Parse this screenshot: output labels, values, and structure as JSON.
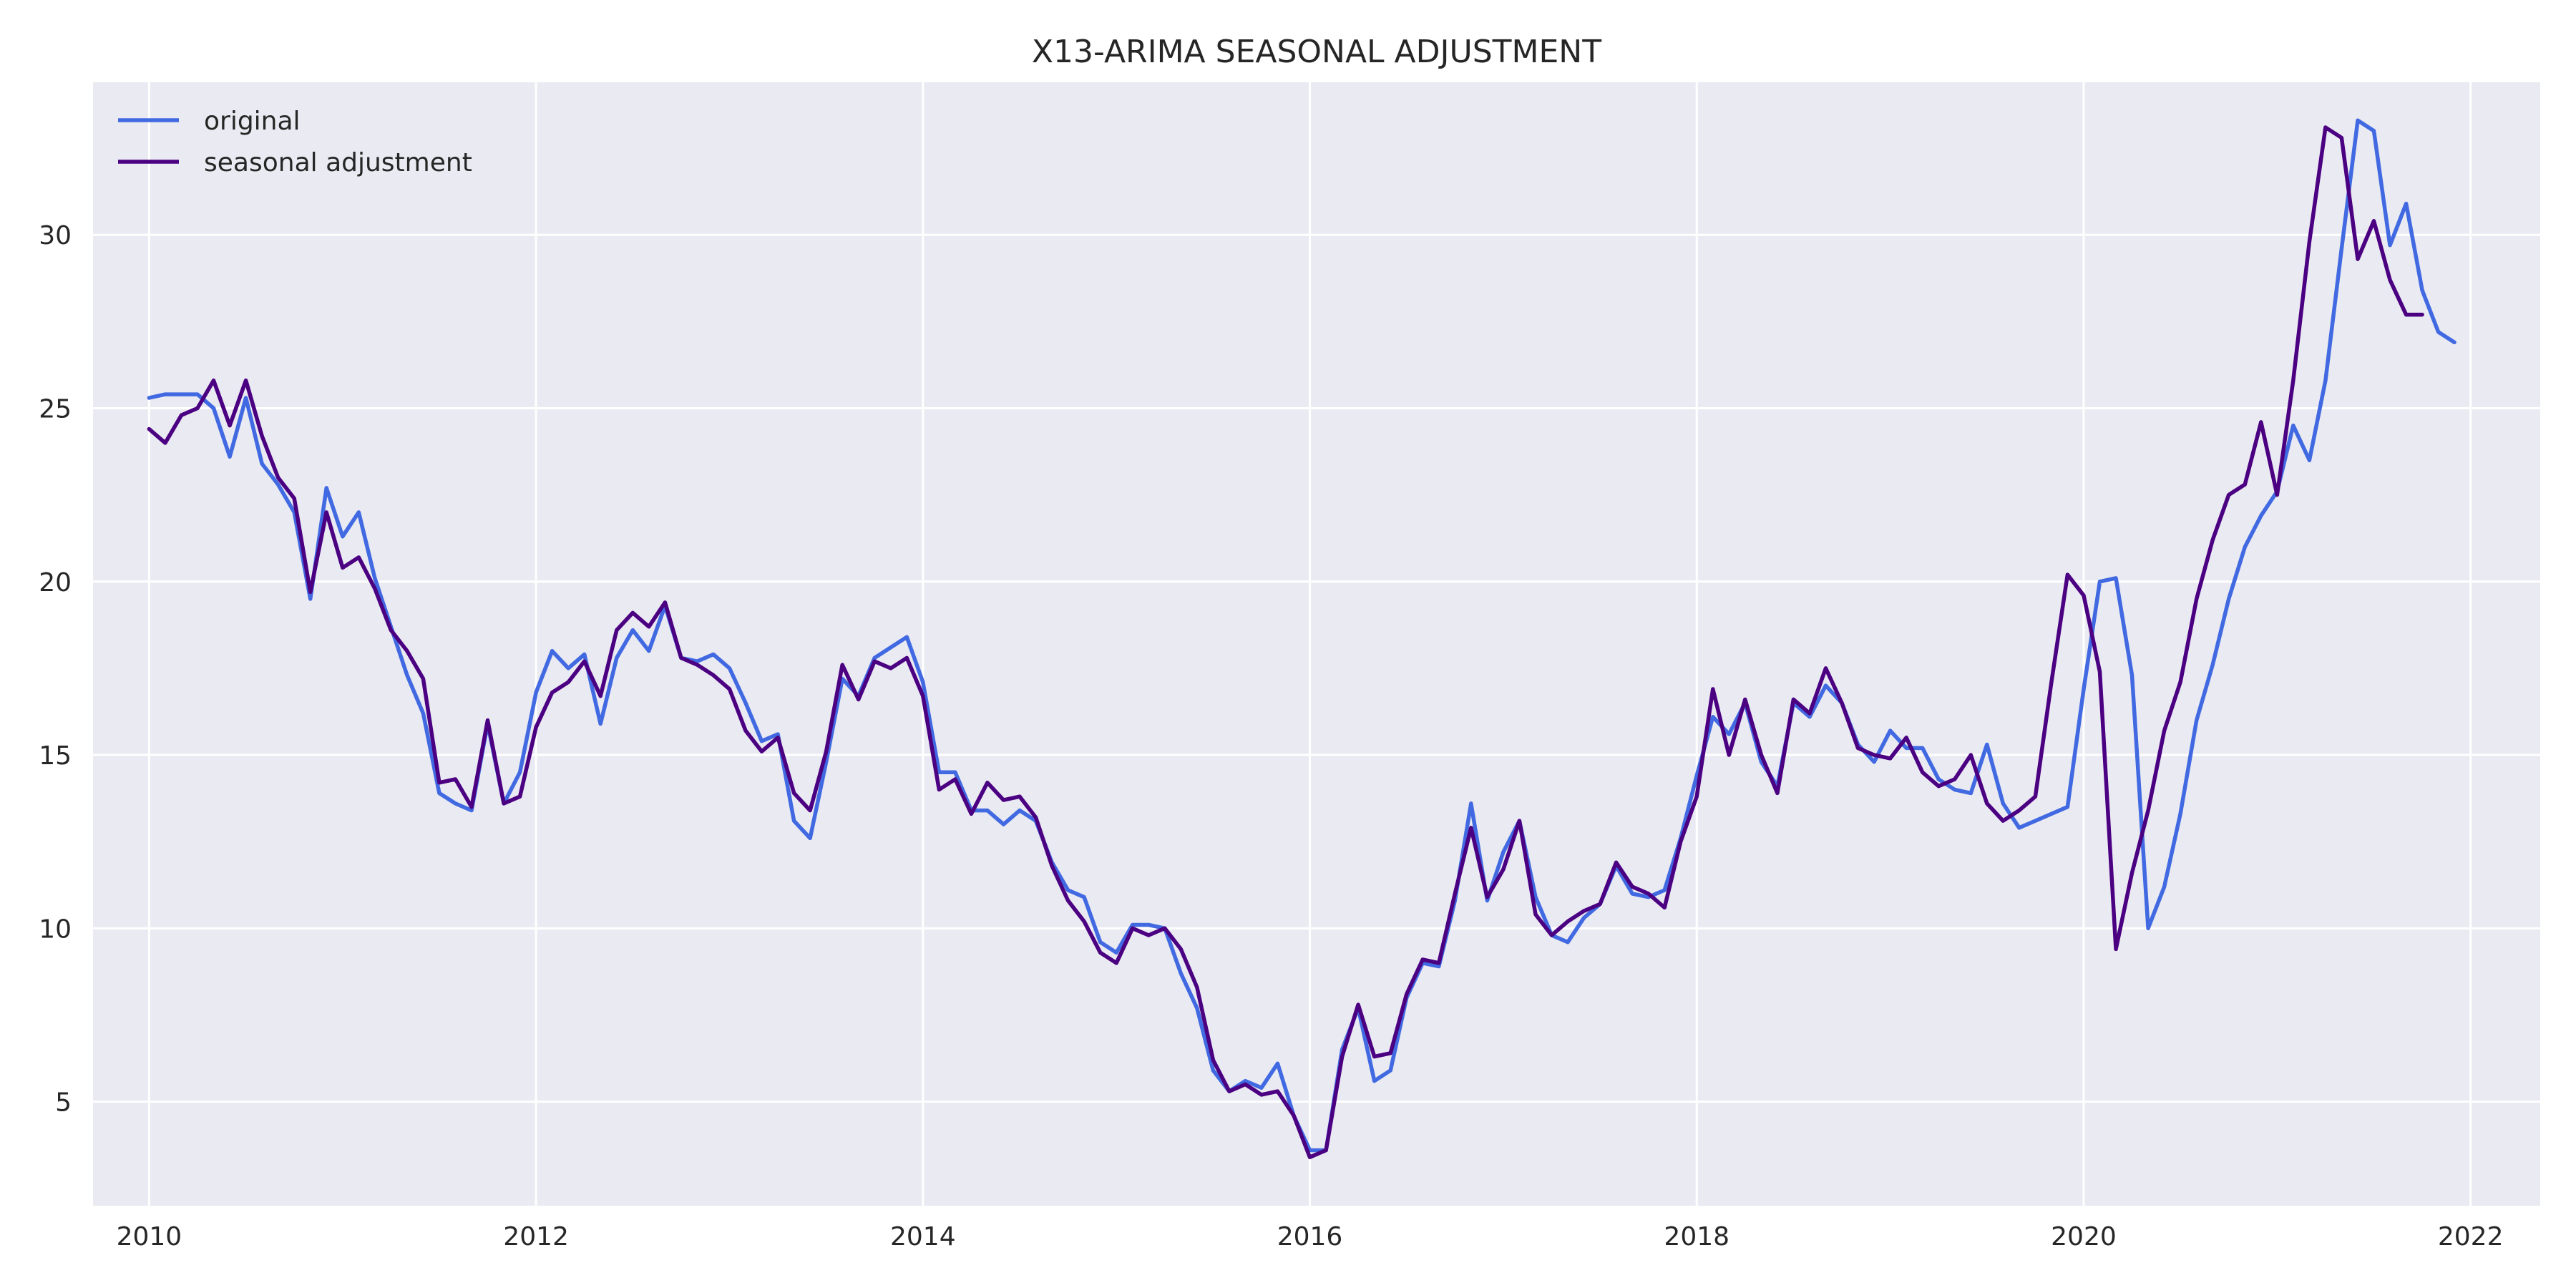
{
  "chart_data": {
    "type": "line",
    "title": "X13-ARIMA SEASONAL ADJUSTMENT",
    "xlabel": "",
    "ylabel": "",
    "xlim": [
      2009.71,
      2022.36
    ],
    "ylim": [
      2.0,
      34.4
    ],
    "x_ticks": [
      2010,
      2012,
      2014,
      2016,
      2018,
      2020,
      2022
    ],
    "x_tick_labels": [
      "2010",
      "2012",
      "2014",
      "2016",
      "2018",
      "2020",
      "2022"
    ],
    "y_ticks": [
      5,
      10,
      15,
      20,
      25,
      30
    ],
    "y_tick_labels": [
      "5",
      "10",
      "15",
      "20",
      "25",
      "30"
    ],
    "grid": true,
    "legend_position": "top-left",
    "x_start": 2010.0,
    "x_step_months": 1,
    "series": [
      {
        "name": "original",
        "color": "#4169E1",
        "values": [
          25.3,
          25.4,
          25.4,
          25.4,
          25.0,
          23.6,
          25.3,
          23.4,
          22.8,
          22.0,
          19.5,
          22.7,
          21.3,
          22.0,
          20.1,
          18.7,
          17.3,
          16.2,
          13.9,
          13.6,
          13.4,
          15.9,
          13.6,
          14.5,
          16.8,
          18.0,
          17.5,
          17.9,
          15.9,
          17.8,
          18.6,
          18.0,
          19.3,
          17.8,
          17.7,
          17.9,
          17.5,
          16.5,
          15.4,
          15.6,
          13.1,
          12.6,
          14.8,
          17.2,
          16.7,
          17.8,
          18.1,
          18.4,
          17.1,
          14.5,
          14.5,
          13.4,
          13.4,
          13.0,
          13.4,
          13.1,
          11.9,
          11.1,
          10.9,
          9.6,
          9.3,
          10.1,
          10.1,
          10.0,
          8.7,
          7.7,
          5.9,
          5.3,
          5.6,
          5.4,
          6.1,
          4.6,
          3.6,
          3.6,
          6.5,
          7.7,
          5.6,
          5.9,
          8.0,
          9.0,
          8.9,
          10.8,
          13.6,
          10.8,
          12.2,
          13.1,
          10.9,
          9.8,
          9.6,
          10.3,
          10.7,
          11.8,
          11.0,
          10.9,
          11.1,
          12.6,
          14.4,
          16.1,
          15.6,
          16.5,
          14.8,
          14.1,
          16.5,
          16.1,
          17.0,
          16.5,
          15.3,
          14.8,
          15.7,
          15.2,
          15.2,
          14.3,
          14.0,
          13.9,
          15.3,
          13.6,
          12.9,
          13.1,
          13.3,
          13.5,
          16.9,
          20.0,
          20.1,
          17.3,
          10.0,
          11.2,
          13.3,
          16.0,
          17.6,
          19.5,
          21.0,
          21.9,
          22.6,
          24.5,
          23.5,
          25.8,
          29.6,
          33.3,
          33.0,
          29.7,
          30.9,
          28.4,
          27.2,
          26.9
        ]
      },
      {
        "name": "seasonal adjustment",
        "color": "#4B0082",
        "values": [
          24.4,
          24.0,
          24.8,
          25.0,
          25.8,
          24.5,
          25.8,
          24.2,
          23.0,
          22.4,
          19.7,
          22.0,
          20.4,
          20.7,
          19.8,
          18.6,
          18.0,
          17.2,
          14.2,
          14.3,
          13.5,
          16.0,
          13.6,
          13.8,
          15.8,
          16.8,
          17.1,
          17.7,
          16.7,
          18.6,
          19.1,
          18.7,
          19.4,
          17.8,
          17.6,
          17.3,
          16.9,
          15.7,
          15.1,
          15.5,
          13.9,
          13.4,
          15.1,
          17.6,
          16.6,
          17.7,
          17.5,
          17.8,
          16.7,
          14.0,
          14.3,
          13.3,
          14.2,
          13.7,
          13.8,
          13.2,
          11.8,
          10.8,
          10.2,
          9.3,
          9.0,
          10.0,
          9.8,
          10.0,
          9.4,
          8.3,
          6.2,
          5.3,
          5.5,
          5.2,
          5.3,
          4.6,
          3.4,
          3.6,
          6.3,
          7.8,
          6.3,
          6.4,
          8.1,
          9.1,
          9.0,
          11.0,
          12.9,
          10.9,
          11.7,
          13.1,
          10.4,
          9.8,
          10.2,
          10.5,
          10.7,
          11.9,
          11.2,
          11.0,
          10.6,
          12.5,
          13.8,
          16.9,
          15.0,
          16.6,
          15.0,
          13.9,
          16.6,
          16.2,
          17.5,
          16.5,
          15.2,
          15.0,
          14.9,
          15.5,
          14.5,
          14.1,
          14.3,
          15.0,
          13.6,
          13.1,
          13.4,
          13.8,
          17.1,
          20.2,
          19.6,
          17.4,
          9.4,
          11.6,
          13.4,
          15.7,
          17.1,
          19.5,
          21.2,
          22.5,
          22.8,
          24.6,
          22.5,
          25.8,
          29.8,
          33.1,
          32.8,
          29.3,
          30.4,
          28.7,
          27.7,
          27.7
        ]
      }
    ]
  }
}
